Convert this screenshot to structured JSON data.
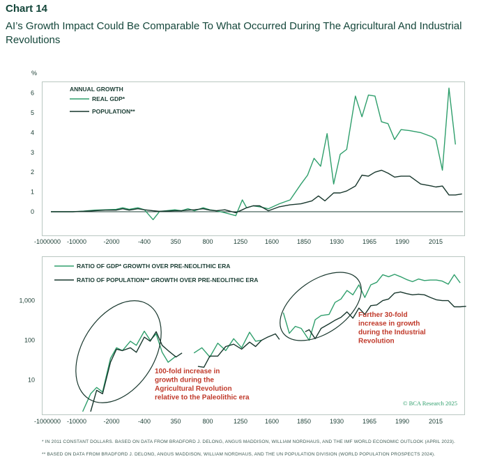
{
  "chart_label": "Chart 14",
  "chart_title": "AI’s Growth Impact Could Be Comparable To What Occurred During The Agricultural And Industrial Revolutions",
  "colors": {
    "gdp": "#2e9e6b",
    "population": "#17362c",
    "annotation": "#c03a2b",
    "title": "#14463a"
  },
  "chart_data": [
    {
      "type": "line",
      "panel": "top",
      "y_unit": "%",
      "legend_title": "ANNUAL GROWTH",
      "legend_placement": "top-left",
      "ylim": [
        -0.9,
        6.9
      ],
      "yticks": [
        0,
        1,
        2,
        3,
        4,
        5,
        6
      ],
      "xticks": [
        "-1000000",
        "-10000",
        "-2000",
        "-400",
        "350",
        "800",
        "1250",
        "1600",
        "1850",
        "1930",
        "1965",
        "1990",
        "2015"
      ],
      "grid": false,
      "series": [
        {
          "name": "REAL GDP*",
          "color": "#2e9e6b",
          "points": [
            [
              0,
              0
            ],
            [
              1,
              0
            ],
            [
              1.5,
              0.03
            ],
            [
              2,
              0.08
            ],
            [
              2.5,
              0.1
            ],
            [
              3,
              0.12
            ],
            [
              3.3,
              0.2
            ],
            [
              3.6,
              0.12
            ],
            [
              4,
              0.2
            ],
            [
              4.3,
              0.1
            ],
            [
              4.7,
              -0.4
            ],
            [
              5,
              0.02
            ],
            [
              5.3,
              0.05
            ],
            [
              5.7,
              0.1
            ],
            [
              6,
              0.05
            ],
            [
              6.3,
              0.15
            ],
            [
              6.6,
              0.05
            ],
            [
              7,
              0.2
            ],
            [
              7.3,
              0.1
            ],
            [
              7.6,
              0.05
            ],
            [
              8,
              -0.05
            ],
            [
              8.5,
              -0.2
            ],
            [
              8.8,
              0.6
            ],
            [
              9,
              0.2
            ],
            [
              9.3,
              0.3
            ],
            [
              9.6,
              0.25
            ],
            [
              10,
              0.15
            ],
            [
              10.5,
              0.4
            ],
            [
              11,
              0.6
            ],
            [
              11.5,
              1.4
            ],
            [
              11.8,
              1.85
            ],
            [
              12.1,
              2.7
            ],
            [
              12.4,
              2.3
            ],
            [
              12.7,
              3.95
            ],
            [
              13,
              1.4
            ],
            [
              13.3,
              2.9
            ],
            [
              13.6,
              3.15
            ],
            [
              14,
              5.85
            ],
            [
              14.3,
              4.8
            ],
            [
              14.6,
              5.9
            ],
            [
              14.9,
              5.85
            ],
            [
              15.2,
              4.55
            ],
            [
              15.5,
              4.45
            ],
            [
              15.8,
              3.65
            ],
            [
              16.1,
              4.15
            ],
            [
              16.5,
              4.1
            ],
            [
              17,
              4.0
            ],
            [
              17.5,
              3.8
            ],
            [
              17.7,
              3.65
            ],
            [
              18,
              2.1
            ],
            [
              18.3,
              6.25
            ],
            [
              18.6,
              3.4
            ]
          ]
        },
        {
          "name": "POPULATION**",
          "color": "#17362c",
          "points": [
            [
              0,
              0
            ],
            [
              1,
              0
            ],
            [
              1.5,
              0.02
            ],
            [
              2,
              0.05
            ],
            [
              2.5,
              0.08
            ],
            [
              3,
              0.08
            ],
            [
              3.3,
              0.15
            ],
            [
              3.6,
              0.08
            ],
            [
              4,
              0.15
            ],
            [
              4.3,
              0.1
            ],
            [
              4.7,
              0.05
            ],
            [
              5,
              0.02
            ],
            [
              5.3,
              0.03
            ],
            [
              5.7,
              0.05
            ],
            [
              6,
              0.05
            ],
            [
              6.3,
              0.08
            ],
            [
              6.6,
              0.1
            ],
            [
              7,
              0.15
            ],
            [
              7.3,
              0.08
            ],
            [
              7.6,
              0.05
            ],
            [
              8,
              0.1
            ],
            [
              8.5,
              -0.05
            ],
            [
              8.8,
              0.1
            ],
            [
              9,
              0.2
            ],
            [
              9.3,
              0.3
            ],
            [
              9.6,
              0.3
            ],
            [
              10,
              0.05
            ],
            [
              10.5,
              0.25
            ],
            [
              11,
              0.35
            ],
            [
              11.5,
              0.4
            ],
            [
              12,
              0.55
            ],
            [
              12.3,
              0.8
            ],
            [
              12.6,
              0.55
            ],
            [
              13,
              0.95
            ],
            [
              13.3,
              0.95
            ],
            [
              13.6,
              1.05
            ],
            [
              14,
              1.3
            ],
            [
              14.3,
              1.85
            ],
            [
              14.6,
              1.8
            ],
            [
              14.9,
              2.0
            ],
            [
              15.2,
              2.1
            ],
            [
              15.5,
              1.95
            ],
            [
              15.8,
              1.75
            ],
            [
              16.1,
              1.8
            ],
            [
              16.5,
              1.8
            ],
            [
              17,
              1.4
            ],
            [
              17.5,
              1.3
            ],
            [
              17.7,
              1.25
            ],
            [
              18,
              1.3
            ],
            [
              18.3,
              0.85
            ],
            [
              18.6,
              0.85
            ],
            [
              18.9,
              0.9
            ]
          ]
        }
      ]
    },
    {
      "type": "line",
      "panel": "bottom",
      "scale": "log",
      "legend_placement": "top-left",
      "ylim": [
        1.6,
        4000
      ],
      "yticks": [
        10,
        100,
        1000
      ],
      "ytick_labels": [
        "10",
        "100",
        "1,000"
      ],
      "xticks": [
        "-1000000",
        "-10000",
        "-2000",
        "-400",
        "350",
        "800",
        "1250",
        "1600",
        "1850",
        "1930",
        "1965",
        "1990",
        "2015"
      ],
      "grid": false,
      "series": [
        {
          "name": "RATIO OF GDP* GROWTH OVER PRE-NEOLITHIC ERA",
          "color": "#2e9e6b",
          "segments": [
            [
              [
                1.6,
                1.6
              ],
              [
                2,
                4.5
              ],
              [
                2.3,
                6.5
              ],
              [
                2.6,
                5
              ],
              [
                3,
                35
              ],
              [
                3.3,
                65
              ],
              [
                3.6,
                55
              ],
              [
                4,
                95
              ],
              [
                4.3,
                75
              ],
              [
                4.7,
                170
              ],
              [
                5,
                100
              ],
              [
                5.3,
                145
              ],
              [
                5.6,
                50
              ],
              [
                5.9,
                28
              ],
              [
                6.3,
                40
              ]
            ],
            [
              [
                7.2,
                48
              ],
              [
                7.6,
                65
              ],
              [
                8,
                38
              ],
              [
                8.4,
                85
              ],
              [
                8.8,
                55
              ],
              [
                9.2,
                110
              ],
              [
                9.6,
                65
              ],
              [
                10,
                160
              ],
              [
                10.3,
                95
              ],
              [
                10.6,
                100
              ]
            ],
            [
              [
                11.7,
                500
              ],
              [
                12,
                150
              ],
              [
                12.3,
                225
              ],
              [
                12.6,
                200
              ],
              [
                13,
                100
              ],
              [
                13.3,
                330
              ],
              [
                13.6,
                420
              ],
              [
                14,
                450
              ],
              [
                14.3,
                900
              ],
              [
                14.6,
                1100
              ],
              [
                14.9,
                1800
              ],
              [
                15.2,
                1400
              ],
              [
                15.5,
                2500
              ],
              [
                15.8,
                1200
              ],
              [
                16.1,
                2500
              ],
              [
                16.4,
                2900
              ],
              [
                16.7,
                4500
              ],
              [
                17,
                4000
              ],
              [
                17.3,
                4600
              ],
              [
                17.6,
                4000
              ],
              [
                17.9,
                3400
              ],
              [
                18.2,
                3000
              ],
              [
                18.5,
                3500
              ],
              [
                18.8,
                3200
              ],
              [
                19.1,
                3300
              ],
              [
                19.4,
                3300
              ],
              [
                19.7,
                3100
              ],
              [
                20,
                2600
              ],
              [
                20.3,
                4500
              ],
              [
                20.6,
                2800
              ]
            ]
          ]
        },
        {
          "name": "RATIO OF POPULATION** GROWTH OVER PRE-NEOLITHIC ERA",
          "color": "#17362c",
          "segments": [
            [
              [
                2,
                1.6
              ],
              [
                2.3,
                5.5
              ],
              [
                2.6,
                4.5
              ],
              [
                3,
                28
              ],
              [
                3.3,
                60
              ],
              [
                3.6,
                55
              ],
              [
                4,
                65
              ],
              [
                4.3,
                50
              ],
              [
                4.7,
                120
              ],
              [
                5,
                95
              ],
              [
                5.3,
                165
              ],
              [
                5.6,
                75
              ],
              [
                5.9,
                55
              ],
              [
                6.3,
                38
              ],
              [
                6.6,
                48
              ]
            ],
            [
              [
                7.4,
                22
              ],
              [
                7.7,
                21
              ],
              [
                8,
                40
              ],
              [
                8.4,
                40
              ],
              [
                8.8,
                70
              ],
              [
                9.2,
                80
              ],
              [
                9.6,
                60
              ],
              [
                10,
                90
              ],
              [
                10.3,
                70
              ],
              [
                10.6,
                100
              ],
              [
                10.9,
                120
              ],
              [
                11.3,
                145
              ],
              [
                11.5,
                105
              ]
            ],
            [
              [
                12.8,
                165
              ],
              [
                13,
                185
              ],
              [
                13.3,
                110
              ],
              [
                13.6,
                200
              ],
              [
                14,
                260
              ],
              [
                14.3,
                320
              ],
              [
                14.6,
                380
              ],
              [
                14.9,
                520
              ],
              [
                15.2,
                360
              ],
              [
                15.5,
                650
              ],
              [
                15.8,
                450
              ],
              [
                16.1,
                750
              ],
              [
                16.4,
                780
              ],
              [
                16.7,
                1000
              ],
              [
                17,
                1100
              ],
              [
                17.3,
                1550
              ],
              [
                17.6,
                1650
              ],
              [
                17.9,
                1500
              ],
              [
                18.2,
                1400
              ],
              [
                18.5,
                1450
              ],
              [
                18.8,
                1400
              ],
              [
                19.1,
                1200
              ],
              [
                19.4,
                1050
              ],
              [
                19.7,
                1000
              ],
              [
                20,
                1000
              ],
              [
                20.3,
                700
              ],
              [
                20.6,
                700
              ],
              [
                20.9,
                720
              ]
            ]
          ]
        }
      ],
      "annotations": [
        {
          "text": "100-fold increase in growth during the Agricultural Revolution relative to the Paleolithic era",
          "lines": [
            "100-fold increase in",
            "growth during the",
            "Agricultural Revolution",
            "relative to the Paleolithic era"
          ]
        },
        {
          "text": "Further 30-fold increase in growth during the Industrial Revolution",
          "lines": [
            "Further 30-fold",
            "increase in growth",
            "during the Industrial",
            "Revolution"
          ]
        }
      ],
      "watermark": "© BCA Research 2025"
    }
  ],
  "footnotes": [
    "* IN 2011 CONSTANT DOLLARS. BASED ON DATA FROM BRADFORD J. DELONG, ANGUS MADDISON, WILLIAM NORDHAUS, AND THE IMF WORLD ECONOMIC OUTLOOK (APRIL 2023).",
    "** BASED ON DATA FROM BRADFORD J. DELONG, ANGUS MADDISON, WILLIAM NORDHAUS, AND THE UN POPULATION DIVISION (WORLD POPULATION PROSPECTS 2024)."
  ]
}
